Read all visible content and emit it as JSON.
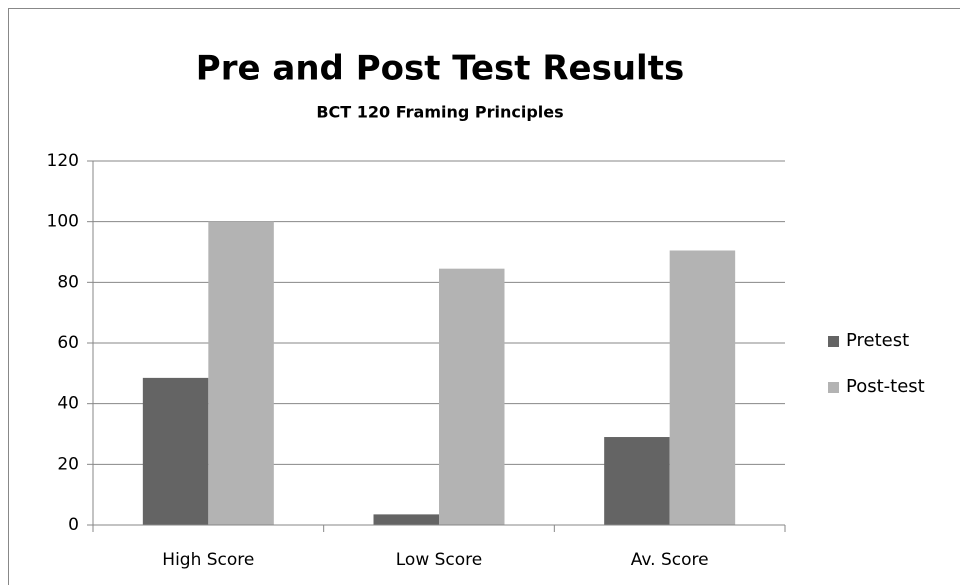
{
  "chart_data": {
    "type": "bar",
    "title": "Pre and Post Test Results",
    "subtitle": "BCT 120 Framing Principles",
    "categories": [
      "High Score",
      "Low Score",
      "Av. Score"
    ],
    "series": [
      {
        "name": "Pretest",
        "color": "#646464",
        "values": [
          48.5,
          3.5,
          29
        ]
      },
      {
        "name": "Post-test",
        "color": "#b3b3b3",
        "values": [
          100,
          84.5,
          90.5
        ]
      }
    ],
    "ylim": [
      0,
      120
    ],
    "yticks": [
      0,
      20,
      40,
      60,
      80,
      100,
      120
    ],
    "grid": true,
    "legend": "right"
  }
}
